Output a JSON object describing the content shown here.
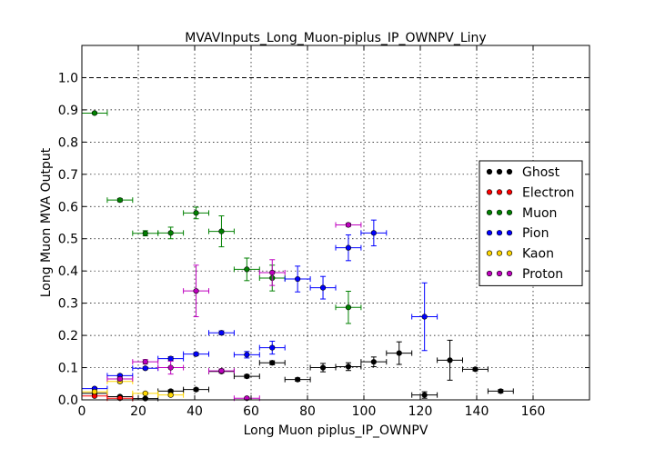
{
  "chart_data": {
    "type": "scatter",
    "title": "MVAVInputs_Long_Muon-piplus_IP_OWNPV_Liny",
    "xlabel": "Long Muon piplus_IP_OWNPV",
    "ylabel": "Long Muon MVA Output",
    "xlim": [
      0,
      180
    ],
    "ylim": [
      0,
      1.1
    ],
    "xticks": [
      0,
      20,
      40,
      60,
      80,
      100,
      120,
      140,
      160
    ],
    "xtick_labels": [
      "0",
      "20",
      "40",
      "60",
      "80",
      "100",
      "120",
      "140",
      "160"
    ],
    "yticks": [
      0,
      0.1,
      0.2,
      0.3,
      0.4,
      0.5,
      0.6,
      0.7,
      0.8,
      0.9,
      1.0
    ],
    "ytick_labels": [
      "0.0",
      "0.1",
      "0.2",
      "0.3",
      "0.4",
      "0.5",
      "0.6",
      "0.7",
      "0.8",
      "0.9",
      "1.0"
    ],
    "grid": true,
    "reference_line_y": 1.0,
    "legend_position": "right",
    "series": [
      {
        "name": "Ghost",
        "color": "#000000",
        "points": [
          {
            "x": 4.5,
            "y": 0.02,
            "xerr": 4.5,
            "yerr": 0.003
          },
          {
            "x": 13.5,
            "y": 0.01,
            "xerr": 4.5,
            "yerr": 0.003
          },
          {
            "x": 22.5,
            "y": 0.004,
            "xerr": 4.5,
            "yerr": 0.003
          },
          {
            "x": 31.5,
            "y": 0.027,
            "xerr": 4.5,
            "yerr": 0.004
          },
          {
            "x": 40.5,
            "y": 0.032,
            "xerr": 4.5,
            "yerr": 0.004
          },
          {
            "x": 49.5,
            "y": 0.088,
            "xerr": 4.5,
            "yerr": 0.005
          },
          {
            "x": 58.5,
            "y": 0.073,
            "xerr": 4.5,
            "yerr": 0.005
          },
          {
            "x": 67.5,
            "y": 0.115,
            "xerr": 4.5,
            "yerr": 0.006
          },
          {
            "x": 76.5,
            "y": 0.063,
            "xerr": 4.5,
            "yerr": 0.005
          },
          {
            "x": 85.5,
            "y": 0.1,
            "xerr": 4.5,
            "yerr": 0.013
          },
          {
            "x": 94.5,
            "y": 0.103,
            "xerr": 4.5,
            "yerr": 0.012
          },
          {
            "x": 103.5,
            "y": 0.118,
            "xerr": 4.5,
            "yerr": 0.015
          },
          {
            "x": 112.5,
            "y": 0.145,
            "xerr": 4.5,
            "yerr": 0.035
          },
          {
            "x": 121.5,
            "y": 0.015,
            "xerr": 4.5,
            "yerr": 0.01
          },
          {
            "x": 130.5,
            "y": 0.123,
            "xerr": 4.5,
            "yerr": 0.062
          },
          {
            "x": 139.5,
            "y": 0.095,
            "xerr": 4.5,
            "yerr": 0.005
          },
          {
            "x": 148.5,
            "y": 0.027,
            "xerr": 4.5,
            "yerr": 0.005
          }
        ]
      },
      {
        "name": "Electron",
        "color": "#ff0000",
        "points": [
          {
            "x": 4.5,
            "y": 0.012,
            "xerr": 4.5,
            "yerr": 0.002
          },
          {
            "x": 13.5,
            "y": 0.005,
            "xerr": 4.5,
            "yerr": 0.002
          }
        ]
      },
      {
        "name": "Muon",
        "color": "#008000",
        "points": [
          {
            "x": 4.5,
            "y": 0.89,
            "xerr": 4.5,
            "yerr": 0.003
          },
          {
            "x": 13.5,
            "y": 0.62,
            "xerr": 4.5,
            "yerr": 0.005
          },
          {
            "x": 22.5,
            "y": 0.517,
            "xerr": 4.5,
            "yerr": 0.008
          },
          {
            "x": 31.5,
            "y": 0.518,
            "xerr": 4.5,
            "yerr": 0.018
          },
          {
            "x": 40.5,
            "y": 0.58,
            "xerr": 4.5,
            "yerr": 0.018
          },
          {
            "x": 49.5,
            "y": 0.523,
            "xerr": 4.5,
            "yerr": 0.048
          },
          {
            "x": 58.5,
            "y": 0.405,
            "xerr": 4.5,
            "yerr": 0.035
          },
          {
            "x": 67.5,
            "y": 0.378,
            "xerr": 4.5,
            "yerr": 0.04
          },
          {
            "x": 94.5,
            "y": 0.287,
            "xerr": 4.5,
            "yerr": 0.05
          }
        ]
      },
      {
        "name": "Pion",
        "color": "#0000ff",
        "points": [
          {
            "x": 4.5,
            "y": 0.035,
            "xerr": 4.5,
            "yerr": 0.003
          },
          {
            "x": 13.5,
            "y": 0.075,
            "xerr": 4.5,
            "yerr": 0.004
          },
          {
            "x": 22.5,
            "y": 0.098,
            "xerr": 4.5,
            "yerr": 0.004
          },
          {
            "x": 31.5,
            "y": 0.128,
            "xerr": 4.5,
            "yerr": 0.006
          },
          {
            "x": 40.5,
            "y": 0.142,
            "xerr": 4.5,
            "yerr": 0.005
          },
          {
            "x": 49.5,
            "y": 0.208,
            "xerr": 4.5,
            "yerr": 0.006
          },
          {
            "x": 58.5,
            "y": 0.14,
            "xerr": 4.5,
            "yerr": 0.01
          },
          {
            "x": 67.5,
            "y": 0.162,
            "xerr": 4.5,
            "yerr": 0.02
          },
          {
            "x": 76.5,
            "y": 0.375,
            "xerr": 4.5,
            "yerr": 0.04
          },
          {
            "x": 85.5,
            "y": 0.348,
            "xerr": 4.5,
            "yerr": 0.035
          },
          {
            "x": 94.5,
            "y": 0.472,
            "xerr": 4.5,
            "yerr": 0.04
          },
          {
            "x": 103.5,
            "y": 0.518,
            "xerr": 4.5,
            "yerr": 0.04
          },
          {
            "x": 121.5,
            "y": 0.258,
            "xerr": 4.5,
            "yerr": 0.105
          }
        ]
      },
      {
        "name": "Kaon",
        "color": "#ffd700",
        "points": [
          {
            "x": 4.5,
            "y": 0.025,
            "xerr": 4.5,
            "yerr": 0.003
          },
          {
            "x": 13.5,
            "y": 0.057,
            "xerr": 4.5,
            "yerr": 0.005
          },
          {
            "x": 22.5,
            "y": 0.02,
            "xerr": 4.5,
            "yerr": 0.004
          },
          {
            "x": 31.5,
            "y": 0.015,
            "xerr": 4.5,
            "yerr": 0.004
          }
        ]
      },
      {
        "name": "Proton",
        "color": "#bf00bf",
        "points": [
          {
            "x": 13.5,
            "y": 0.065,
            "xerr": 4.5,
            "yerr": 0.005
          },
          {
            "x": 22.5,
            "y": 0.118,
            "xerr": 4.5,
            "yerr": 0.007
          },
          {
            "x": 31.5,
            "y": 0.1,
            "xerr": 4.5,
            "yerr": 0.02
          },
          {
            "x": 40.5,
            "y": 0.338,
            "xerr": 4.5,
            "yerr": 0.08
          },
          {
            "x": 49.5,
            "y": 0.09,
            "xerr": 4.5,
            "yerr": 0.006
          },
          {
            "x": 58.5,
            "y": 0.005,
            "xerr": 4.5,
            "yerr": 0.003
          },
          {
            "x": 67.5,
            "y": 0.395,
            "xerr": 4.5,
            "yerr": 0.04
          },
          {
            "x": 94.5,
            "y": 0.543,
            "xerr": 4.5,
            "yerr": 0.005
          }
        ]
      }
    ]
  }
}
